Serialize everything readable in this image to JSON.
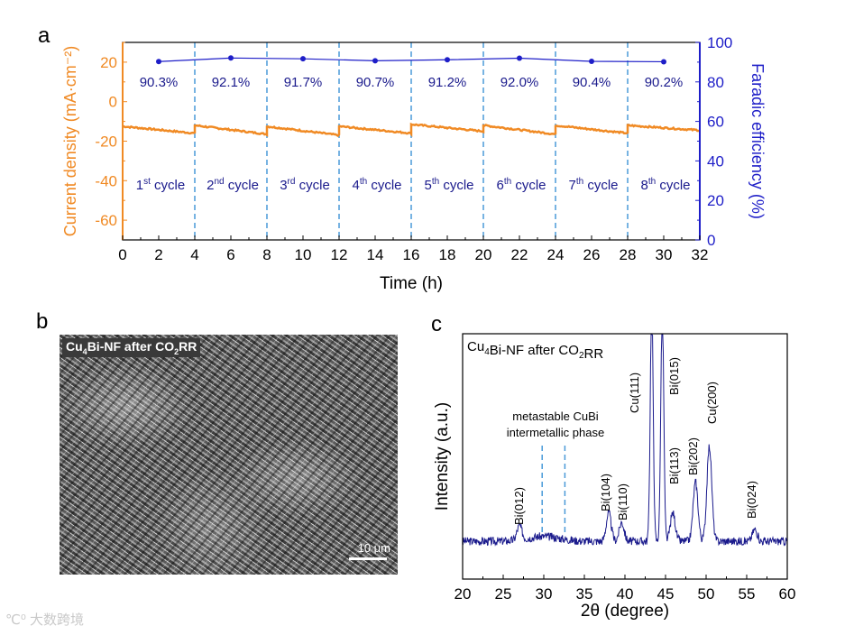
{
  "panels": {
    "a": "a",
    "b": "b",
    "c": "c"
  },
  "colors": {
    "orange": "#f08a24",
    "blue": "#1e1ec8",
    "dash": "#4a9ad8",
    "navy": "#1a1a8c"
  },
  "chart_data": [
    {
      "type": "line",
      "panel": "a",
      "xlabel": "Time (h)",
      "ylabel_left": "Current density (mA·cm⁻²)",
      "ylabel_right": "Faradic efficiency (%)",
      "xlim": [
        0,
        32
      ],
      "ylim_left": [
        -70,
        30
      ],
      "ylim_right": [
        0,
        100
      ],
      "xticks": [
        0,
        2,
        4,
        6,
        8,
        10,
        12,
        14,
        16,
        18,
        20,
        22,
        24,
        26,
        28,
        30,
        32
      ],
      "yticks_left": [
        -60,
        -40,
        -20,
        0,
        20
      ],
      "yticks_right": [
        0,
        20,
        40,
        60,
        80,
        100
      ],
      "cycle_boundaries": [
        4,
        8,
        12,
        16,
        20,
        24,
        28
      ],
      "current_density_series": {
        "name": "Current density",
        "cycles": [
          {
            "start": 0,
            "end": 4,
            "from": -12.5,
            "to": -16.0
          },
          {
            "start": 4,
            "end": 8,
            "from": -12.0,
            "to": -16.5
          },
          {
            "start": 8,
            "end": 12,
            "from": -12.5,
            "to": -17.0
          },
          {
            "start": 12,
            "end": 16,
            "from": -12.5,
            "to": -16.0
          },
          {
            "start": 16,
            "end": 20,
            "from": -11.5,
            "to": -15.0
          },
          {
            "start": 20,
            "end": 24,
            "from": -12.0,
            "to": -16.5
          },
          {
            "start": 24,
            "end": 28,
            "from": -12.0,
            "to": -16.0
          },
          {
            "start": 28,
            "end": 32,
            "from": -12.0,
            "to": -14.5
          }
        ]
      },
      "fe_series": {
        "name": "Faradic efficiency",
        "x": [
          2,
          6,
          10,
          14,
          18,
          22,
          26,
          30
        ],
        "y": [
          90.3,
          92.1,
          91.7,
          90.7,
          91.2,
          92.0,
          90.4,
          90.2
        ],
        "labels": [
          "90.3%",
          "92.1%",
          "91.7%",
          "90.7%",
          "91.2%",
          "92.0%",
          "90.4%",
          "90.2%"
        ]
      },
      "cycle_labels": [
        {
          "num": "1",
          "sup": "st",
          "word": " cycle"
        },
        {
          "num": "2",
          "sup": "nd",
          "word": " cycle"
        },
        {
          "num": "3",
          "sup": "rd",
          "word": " cycle"
        },
        {
          "num": "4",
          "sup": "th",
          "word": " cycle"
        },
        {
          "num": "5",
          "sup": "th",
          "word": " cycle"
        },
        {
          "num": "6",
          "sup": "th",
          "word": " cycle"
        },
        {
          "num": "7",
          "sup": "th",
          "word": " cycle"
        },
        {
          "num": "8",
          "sup": "th",
          "word": " cycle"
        }
      ]
    },
    {
      "type": "line",
      "panel": "c",
      "title": "Cu4Bi-NF after CO2RR",
      "xlabel": "2θ (degree)",
      "ylabel": "Intensity (a.u.)",
      "xlim": [
        20,
        60
      ],
      "xticks": [
        20,
        25,
        30,
        35,
        40,
        45,
        50,
        55,
        60
      ],
      "peaks": [
        {
          "pos": 27.0,
          "height": 0.06,
          "label": "Bi(012)"
        },
        {
          "pos": 38.0,
          "height": 0.12,
          "label": "Bi(104)"
        },
        {
          "pos": 39.6,
          "height": 0.08,
          "label": "Bi(110)"
        },
        {
          "pos": 43.3,
          "height": 1.0,
          "label": "Cu(111)"
        },
        {
          "pos": 44.6,
          "height": 1.0,
          "label": "Bi(015)"
        },
        {
          "pos": 45.9,
          "height": 0.12,
          "label": "Bi(113)"
        },
        {
          "pos": 48.7,
          "height": 0.25,
          "label": "Bi(202)"
        },
        {
          "pos": 50.4,
          "height": 0.4,
          "label": "Cu(200)"
        },
        {
          "pos": 56.0,
          "height": 0.05,
          "label": "Bi(024)"
        }
      ],
      "dashed_markers": [
        29.8,
        32.6
      ],
      "annotation": [
        "metastable CuBi",
        "intermetallic phase"
      ]
    }
  ],
  "sem": {
    "label_pre": "Cu",
    "label_sub1": "4",
    "label_mid": "Bi-NF after CO",
    "label_sub2": "2",
    "label_post": "RR",
    "scale_text": "10 μm"
  },
  "watermark": "℃⁰ 大数跨境"
}
